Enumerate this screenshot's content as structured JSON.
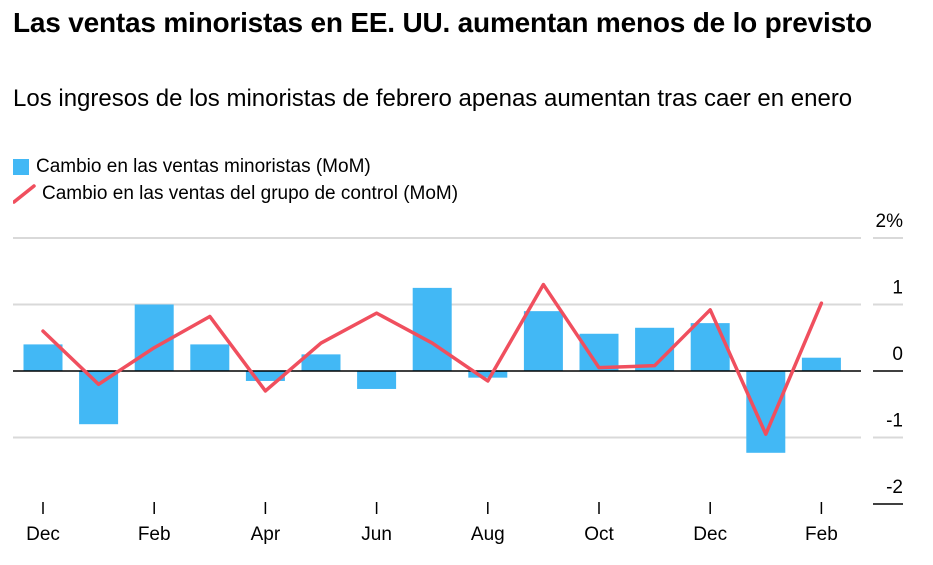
{
  "title": "Las ventas minoristas en EE. UU. aumentan menos de lo previsto",
  "subtitle": "Los ingresos de los minoristas de febrero apenas aumentan tras caer en enero",
  "colors": {
    "bar": "#42b8f5",
    "line": "#f04f5e",
    "grid": "#d9d9d9",
    "zero": "#000000"
  },
  "chart_data": {
    "type": "bar",
    "legend_position": "top-left",
    "grid": true,
    "ylim": [
      -2,
      2
    ],
    "y_ticks": [
      {
        "value": 2,
        "label": "2%"
      },
      {
        "value": 1,
        "label": "1"
      },
      {
        "value": 0,
        "label": "0"
      },
      {
        "value": -1,
        "label": "-1"
      },
      {
        "value": -2,
        "label": "-2"
      }
    ],
    "x": [
      "2023-12",
      "2024-01",
      "2024-02",
      "2024-03",
      "2024-04",
      "2024-05",
      "2024-06",
      "2024-07",
      "2024-08",
      "2024-09",
      "2024-10",
      "2024-11",
      "2024-12",
      "2025-01",
      "2025-02"
    ],
    "x_tick_labels": [
      "Dec",
      "",
      "Feb",
      "",
      "Apr",
      "",
      "Jun",
      "",
      "Aug",
      "",
      "Oct",
      "",
      "Dec",
      "",
      "Feb"
    ],
    "series": [
      {
        "name": "Cambio en las ventas minoristas (MoM)",
        "type": "bar",
        "values": [
          0.4,
          -0.8,
          1.0,
          0.4,
          -0.15,
          0.25,
          -0.27,
          1.25,
          -0.1,
          0.9,
          0.56,
          0.65,
          0.72,
          -1.23,
          0.2
        ]
      },
      {
        "name": "Cambio en las ventas del grupo de control (MoM)",
        "type": "line",
        "values": [
          0.6,
          -0.2,
          0.35,
          0.82,
          -0.3,
          0.42,
          0.87,
          0.42,
          -0.15,
          1.3,
          0.05,
          0.08,
          0.92,
          -0.95,
          1.02
        ]
      }
    ]
  }
}
